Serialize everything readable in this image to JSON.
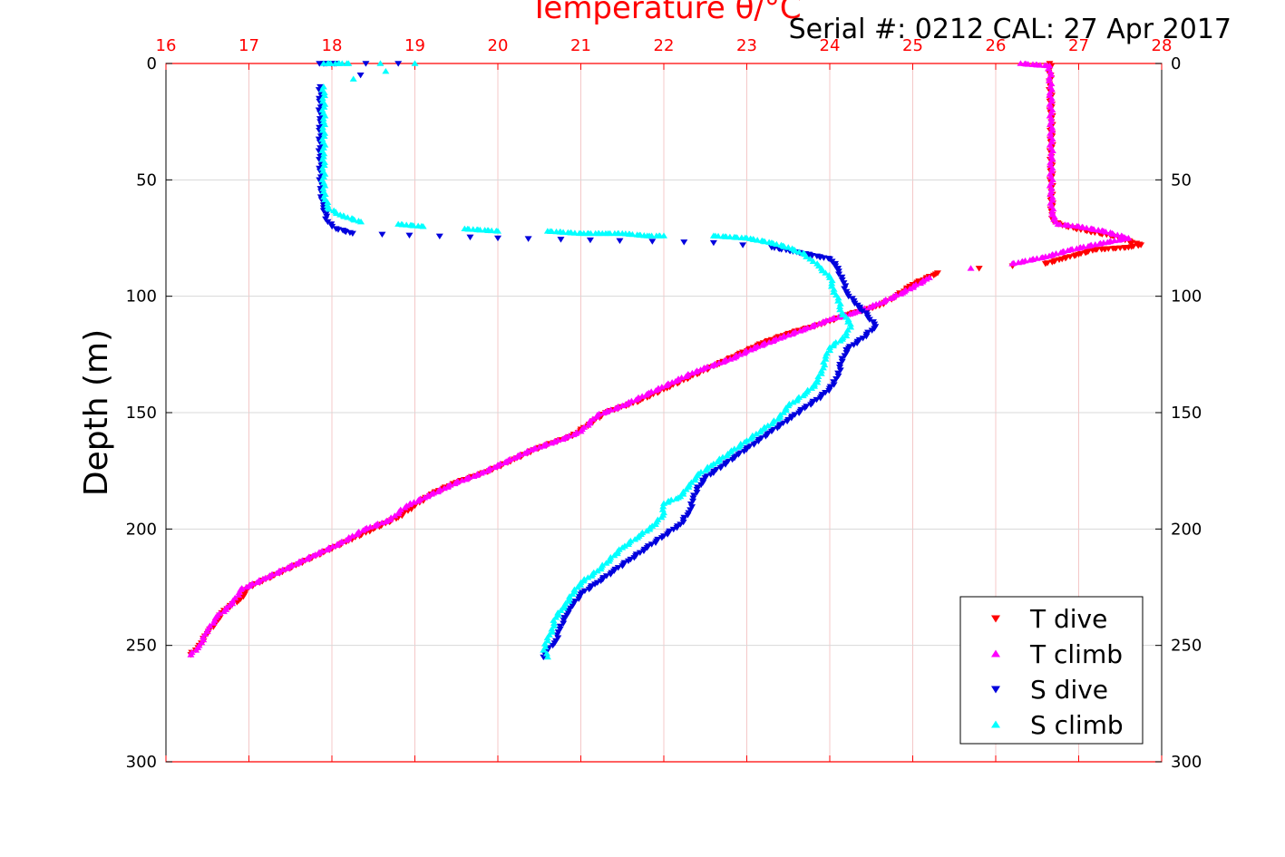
{
  "chart_data": {
    "type": "scatter",
    "title": "Temperature θ/°C",
    "subtitle": "Serial #: 0212  CAL: 27 Apr 2017",
    "ylabel": "Depth (m)",
    "xlim": [
      16,
      28
    ],
    "ylim": [
      0,
      300
    ],
    "y_reversed": true,
    "x_ticks": [
      "16",
      "17",
      "18",
      "19",
      "20",
      "21",
      "22",
      "23",
      "24",
      "25",
      "26",
      "27",
      "28"
    ],
    "y_ticks": [
      "0",
      "50",
      "100",
      "150",
      "200",
      "250",
      "300"
    ],
    "grid": true,
    "legend_position": "bottom-right",
    "colors": {
      "axis_top": "#ff0000",
      "grid": "#f4c8c8",
      "t_dive": "#ff0000",
      "t_climb": "#ff00ff",
      "s_dive": "#0000dd",
      "s_climb": "#00ffff"
    },
    "series": [
      {
        "name": "T dive",
        "marker": "triangle-down",
        "color": "#ff0000",
        "points": [
          [
            26.65,
            0
          ],
          [
            26.66,
            10
          ],
          [
            26.67,
            25
          ],
          [
            26.67,
            40
          ],
          [
            26.67,
            55
          ],
          [
            26.68,
            65
          ],
          [
            26.7,
            68
          ],
          [
            26.85,
            70
          ],
          [
            27.1,
            72
          ],
          [
            27.4,
            74
          ],
          [
            27.75,
            78
          ],
          [
            27.6,
            79
          ],
          [
            27.2,
            80
          ],
          [
            27.0,
            82
          ],
          [
            26.8,
            84
          ],
          [
            26.6,
            86
          ],
          [
            25.8,
            88
          ],
          [
            25.3,
            90
          ],
          [
            25.0,
            95
          ],
          [
            24.8,
            100
          ],
          [
            24.6,
            104
          ],
          [
            24.2,
            108
          ],
          [
            23.9,
            112
          ],
          [
            23.5,
            116
          ],
          [
            23.2,
            120
          ],
          [
            22.9,
            125
          ],
          [
            22.6,
            130
          ],
          [
            22.3,
            135
          ],
          [
            22.0,
            140
          ],
          [
            21.7,
            145
          ],
          [
            21.3,
            150
          ],
          [
            21.1,
            155
          ],
          [
            20.9,
            160
          ],
          [
            20.5,
            165
          ],
          [
            20.2,
            170
          ],
          [
            19.9,
            175
          ],
          [
            19.5,
            180
          ],
          [
            19.2,
            185
          ],
          [
            19.0,
            190
          ],
          [
            18.8,
            195
          ],
          [
            18.5,
            200
          ],
          [
            18.2,
            205
          ],
          [
            17.9,
            210
          ],
          [
            17.6,
            215
          ],
          [
            17.3,
            220
          ],
          [
            17.0,
            225
          ],
          [
            16.9,
            230
          ],
          [
            16.7,
            235
          ],
          [
            16.6,
            240
          ],
          [
            16.5,
            245
          ],
          [
            16.4,
            250
          ],
          [
            16.3,
            254
          ]
        ]
      },
      {
        "name": "T climb",
        "marker": "triangle-up",
        "color": "#ff00ff",
        "points": [
          [
            26.3,
            0
          ],
          [
            26.65,
            1
          ],
          [
            26.66,
            10
          ],
          [
            26.67,
            25
          ],
          [
            26.67,
            40
          ],
          [
            26.67,
            55
          ],
          [
            26.68,
            65
          ],
          [
            26.75,
            69
          ],
          [
            27.0,
            70
          ],
          [
            27.3,
            72
          ],
          [
            27.6,
            75
          ],
          [
            27.3,
            77
          ],
          [
            26.9,
            80
          ],
          [
            26.6,
            83
          ],
          [
            26.2,
            86
          ],
          [
            25.7,
            88
          ],
          [
            25.2,
            92
          ],
          [
            24.9,
            98
          ],
          [
            24.6,
            103
          ],
          [
            24.3,
            107
          ],
          [
            24.0,
            110
          ],
          [
            23.7,
            114
          ],
          [
            23.4,
            118
          ],
          [
            23.1,
            122
          ],
          [
            22.8,
            127
          ],
          [
            22.4,
            132
          ],
          [
            22.1,
            137
          ],
          [
            21.8,
            142
          ],
          [
            21.5,
            147
          ],
          [
            21.2,
            151
          ],
          [
            21.0,
            158
          ],
          [
            20.8,
            161
          ],
          [
            20.4,
            166
          ],
          [
            20.1,
            171
          ],
          [
            19.8,
            176
          ],
          [
            19.5,
            180
          ],
          [
            19.2,
            185
          ],
          [
            18.9,
            190
          ],
          [
            18.7,
            196
          ],
          [
            18.4,
            200
          ],
          [
            18.1,
            206
          ],
          [
            17.8,
            211
          ],
          [
            17.5,
            216
          ],
          [
            17.2,
            221
          ],
          [
            16.9,
            226
          ],
          [
            16.8,
            232
          ],
          [
            16.6,
            238
          ],
          [
            16.5,
            244
          ],
          [
            16.4,
            250
          ],
          [
            16.3,
            254
          ]
        ]
      },
      {
        "name": "S dive",
        "marker": "triangle-down",
        "color": "#0000dd",
        "points": [
          [
            17.85,
            0
          ],
          [
            18.05,
            0
          ],
          [
            18.8,
            0
          ],
          [
            17.86,
            10
          ],
          [
            17.86,
            25
          ],
          [
            17.86,
            40
          ],
          [
            17.87,
            55
          ],
          [
            17.9,
            62
          ],
          [
            17.95,
            68
          ],
          [
            18.05,
            71
          ],
          [
            18.25,
            73
          ],
          [
            20.0,
            75
          ],
          [
            22.6,
            77
          ],
          [
            23.3,
            79
          ],
          [
            23.6,
            81
          ],
          [
            24.0,
            84
          ],
          [
            24.1,
            88
          ],
          [
            24.15,
            93
          ],
          [
            24.2,
            98
          ],
          [
            24.3,
            103
          ],
          [
            24.45,
            108
          ],
          [
            24.55,
            113
          ],
          [
            24.4,
            118
          ],
          [
            24.2,
            123
          ],
          [
            24.15,
            128
          ],
          [
            24.1,
            133
          ],
          [
            24.05,
            138
          ],
          [
            23.9,
            143
          ],
          [
            23.7,
            148
          ],
          [
            23.5,
            153
          ],
          [
            23.3,
            158
          ],
          [
            23.1,
            163
          ],
          [
            22.9,
            168
          ],
          [
            22.7,
            173
          ],
          [
            22.5,
            178
          ],
          [
            22.4,
            183
          ],
          [
            22.35,
            188
          ],
          [
            22.3,
            193
          ],
          [
            22.2,
            198
          ],
          [
            22.0,
            203
          ],
          [
            21.8,
            208
          ],
          [
            21.6,
            213
          ],
          [
            21.4,
            218
          ],
          [
            21.2,
            223
          ],
          [
            21.0,
            228
          ],
          [
            20.9,
            233
          ],
          [
            20.8,
            238
          ],
          [
            20.75,
            243
          ],
          [
            20.7,
            248
          ],
          [
            20.6,
            252
          ],
          [
            20.55,
            255
          ]
        ]
      },
      {
        "name": "S climb",
        "marker": "triangle-up",
        "color": "#00ffff",
        "points": [
          [
            17.9,
            0
          ],
          [
            18.2,
            0
          ],
          [
            19.0,
            0
          ],
          [
            17.9,
            10
          ],
          [
            17.9,
            25
          ],
          [
            17.9,
            40
          ],
          [
            17.9,
            55
          ],
          [
            17.95,
            62
          ],
          [
            18.1,
            65
          ],
          [
            18.35,
            68
          ],
          [
            18.8,
            69
          ],
          [
            19.1,
            70
          ],
          [
            19.6,
            71
          ],
          [
            20.0,
            72
          ],
          [
            20.6,
            72
          ],
          [
            21.0,
            73
          ],
          [
            21.3,
            73
          ],
          [
            21.5,
            73
          ],
          [
            21.8,
            74
          ],
          [
            22.0,
            74
          ],
          [
            22.6,
            74
          ],
          [
            23.0,
            75
          ],
          [
            23.3,
            77
          ],
          [
            23.5,
            79
          ],
          [
            23.7,
            82
          ],
          [
            23.8,
            85
          ],
          [
            23.9,
            88
          ],
          [
            24.0,
            92
          ],
          [
            24.05,
            97
          ],
          [
            24.1,
            102
          ],
          [
            24.15,
            107
          ],
          [
            24.25,
            112
          ],
          [
            24.2,
            117
          ],
          [
            24.0,
            122
          ],
          [
            23.95,
            127
          ],
          [
            23.9,
            132
          ],
          [
            23.85,
            137
          ],
          [
            23.7,
            142
          ],
          [
            23.5,
            147
          ],
          [
            23.4,
            152
          ],
          [
            23.2,
            157
          ],
          [
            23.0,
            162
          ],
          [
            22.8,
            167
          ],
          [
            22.6,
            172
          ],
          [
            22.4,
            177
          ],
          [
            22.3,
            182
          ],
          [
            22.2,
            186
          ],
          [
            22.0,
            189
          ],
          [
            22.0,
            193
          ],
          [
            21.9,
            198
          ],
          [
            21.7,
            203
          ],
          [
            21.5,
            208
          ],
          [
            21.35,
            213
          ],
          [
            21.2,
            218
          ],
          [
            21.0,
            223
          ],
          [
            20.9,
            228
          ],
          [
            20.8,
            233
          ],
          [
            20.7,
            238
          ],
          [
            20.65,
            243
          ],
          [
            20.6,
            248
          ],
          [
            20.55,
            252
          ],
          [
            20.6,
            255
          ]
        ]
      }
    ]
  }
}
